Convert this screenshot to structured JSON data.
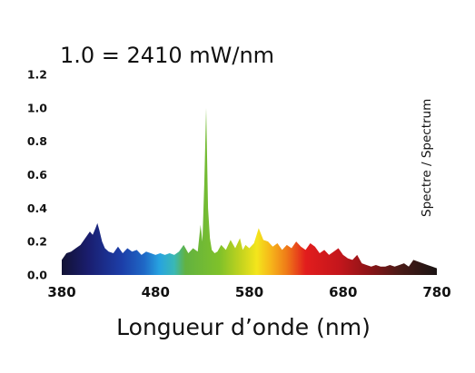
{
  "chart_data": {
    "type": "area",
    "title": "1.0 = 2410 mW/nm",
    "xlabel": "Longueur d’onde (nm)",
    "ylabel": "",
    "side_label": "Spectre / Spectrum",
    "xlim": [
      380,
      780
    ],
    "ylim": [
      0,
      1.2
    ],
    "xticks": [
      {
        "value": 380,
        "label": "380"
      },
      {
        "value": 480,
        "label": "480"
      },
      {
        "value": 580,
        "label": "580"
      },
      {
        "value": 680,
        "label": "680"
      },
      {
        "value": 780,
        "label": "780"
      }
    ],
    "yticks": [
      {
        "value": 0.0,
        "label": "0.0"
      },
      {
        "value": 0.2,
        "label": "0.2"
      },
      {
        "value": 0.4,
        "label": "0.4"
      },
      {
        "value": 0.6,
        "label": "0.6"
      },
      {
        "value": 0.8,
        "label": "0.8"
      },
      {
        "value": 1.0,
        "label": "1.0"
      },
      {
        "value": 1.2,
        "label": "1.2"
      }
    ],
    "grid": false,
    "series": [
      {
        "x": [
          380,
          385,
          390,
          395,
          400,
          405,
          410,
          413,
          416,
          418,
          420,
          423,
          426,
          430,
          435,
          440,
          445,
          450,
          455,
          460,
          465,
          470,
          475,
          480,
          485,
          490,
          495,
          500,
          505,
          510,
          515,
          520,
          525,
          528,
          530,
          532,
          534,
          535,
          536,
          538,
          540,
          543,
          546,
          550,
          555,
          560,
          565,
          570,
          573,
          576,
          580,
          585,
          590,
          595,
          600,
          605,
          610,
          615,
          620,
          625,
          630,
          635,
          640,
          645,
          650,
          655,
          660,
          665,
          670,
          675,
          680,
          685,
          690,
          695,
          700,
          705,
          710,
          715,
          720,
          725,
          730,
          735,
          740,
          745,
          750,
          755,
          760,
          765,
          770,
          775,
          780
        ],
        "values": [
          0.09,
          0.13,
          0.14,
          0.16,
          0.18,
          0.22,
          0.26,
          0.24,
          0.28,
          0.31,
          0.27,
          0.2,
          0.16,
          0.14,
          0.13,
          0.17,
          0.13,
          0.16,
          0.14,
          0.15,
          0.12,
          0.14,
          0.13,
          0.12,
          0.13,
          0.12,
          0.13,
          0.12,
          0.14,
          0.18,
          0.13,
          0.16,
          0.14,
          0.3,
          0.2,
          0.55,
          1.0,
          0.7,
          0.4,
          0.22,
          0.15,
          0.13,
          0.14,
          0.18,
          0.15,
          0.21,
          0.16,
          0.22,
          0.15,
          0.18,
          0.16,
          0.19,
          0.28,
          0.21,
          0.2,
          0.17,
          0.19,
          0.15,
          0.18,
          0.16,
          0.2,
          0.17,
          0.15,
          0.19,
          0.17,
          0.13,
          0.15,
          0.12,
          0.14,
          0.16,
          0.12,
          0.1,
          0.09,
          0.12,
          0.07,
          0.06,
          0.05,
          0.06,
          0.05,
          0.05,
          0.06,
          0.05,
          0.06,
          0.07,
          0.05,
          0.09,
          0.08,
          0.07,
          0.06,
          0.05,
          0.04
        ]
      }
    ]
  }
}
